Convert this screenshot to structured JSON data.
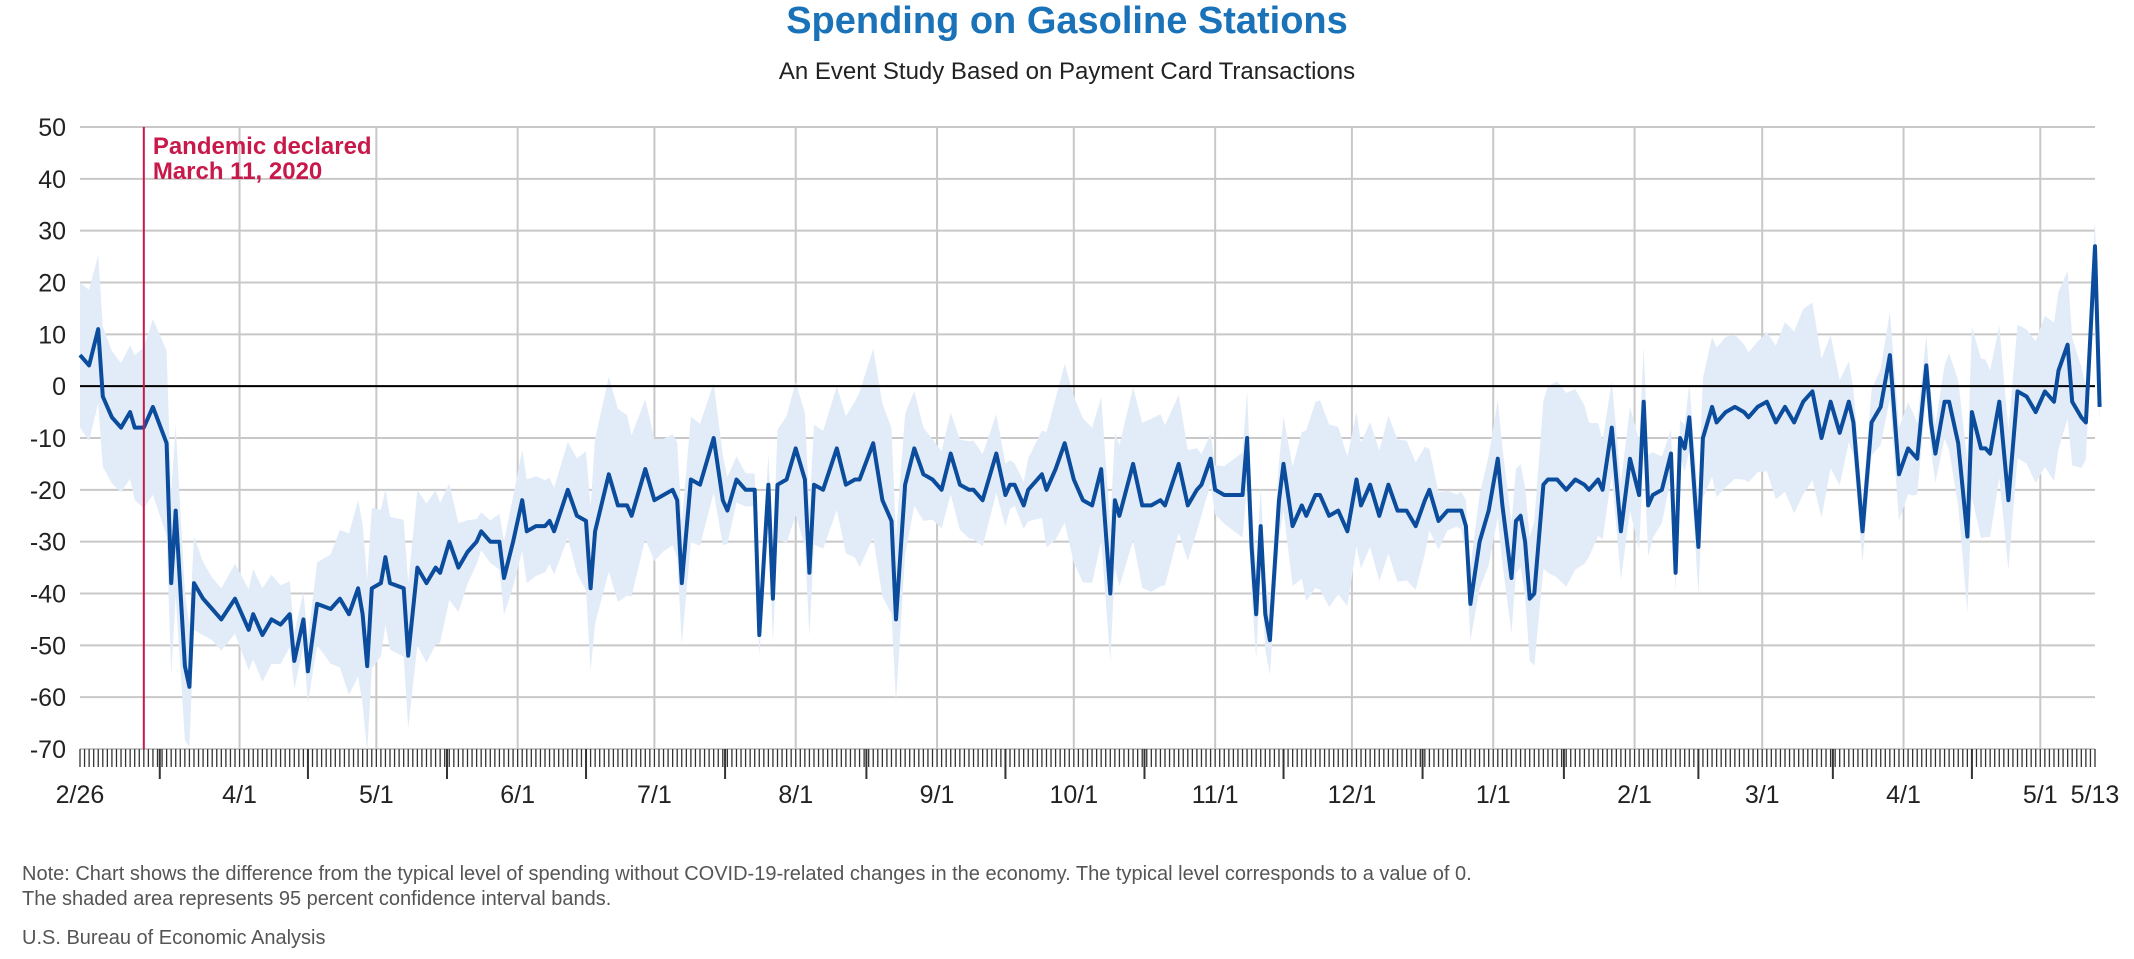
{
  "title": "Spending on Gasoline Stations",
  "subtitle": "An Event Study Based on Payment Card Transactions",
  "note_line1": "Note: Chart shows the difference from the typical level of spending without COVID-19-related changes in the economy. The typical level corresponds to a value of 0.",
  "note_line2": "The shaded area represents 95 percent confidence interval bands.",
  "source": "U.S. Bureau of Economic Analysis",
  "colors": {
    "title": "#1a73b9",
    "line": "#0b4c9c",
    "band": "#e2ecf8",
    "annotation": "#c8194b"
  },
  "chart_data": {
    "type": "line",
    "ylim": [
      -70,
      50
    ],
    "yticks": [
      50,
      40,
      30,
      20,
      10,
      0,
      -10,
      -20,
      -30,
      -40,
      -50,
      -60,
      -70
    ],
    "x_start": "2020-02-26",
    "x_end": "2021-05-13",
    "xticks": [
      {
        "date": "2020-02-26",
        "label": "2/26"
      },
      {
        "date": "2020-04-01",
        "label": "4/1"
      },
      {
        "date": "2020-05-01",
        "label": "5/1"
      },
      {
        "date": "2020-06-01",
        "label": "6/1"
      },
      {
        "date": "2020-07-01",
        "label": "7/1"
      },
      {
        "date": "2020-08-01",
        "label": "8/1"
      },
      {
        "date": "2020-09-01",
        "label": "9/1"
      },
      {
        "date": "2020-10-01",
        "label": "10/1"
      },
      {
        "date": "2020-11-01",
        "label": "11/1"
      },
      {
        "date": "2020-12-01",
        "label": "12/1"
      },
      {
        "date": "2021-01-01",
        "label": "1/1"
      },
      {
        "date": "2021-02-01",
        "label": "2/1"
      },
      {
        "date": "2021-03-01",
        "label": "3/1"
      },
      {
        "date": "2021-04-01",
        "label": "4/1"
      },
      {
        "date": "2021-05-01",
        "label": "5/1"
      },
      {
        "date": "2021-05-13",
        "label": "5/13"
      }
    ],
    "annotation": {
      "date": "2020-03-11",
      "line1": "Pandemic declared",
      "line2": "March 11, 2020"
    },
    "series": [
      {
        "points": [
          [
            "2020-02-26",
            6
          ],
          [
            "2020-02-28",
            4
          ],
          [
            "2020-03-01",
            11
          ],
          [
            "2020-03-02",
            -2
          ],
          [
            "2020-03-04",
            -6
          ],
          [
            "2020-03-06",
            -8
          ],
          [
            "2020-03-08",
            -5
          ],
          [
            "2020-03-09",
            -8
          ],
          [
            "2020-03-11",
            -8
          ],
          [
            "2020-03-13",
            -4
          ],
          [
            "2020-03-16",
            -11
          ],
          [
            "2020-03-17",
            -38
          ],
          [
            "2020-03-18",
            -24
          ],
          [
            "2020-03-20",
            -54
          ],
          [
            "2020-03-21",
            -58
          ],
          [
            "2020-03-22",
            -38
          ],
          [
            "2020-03-24",
            -41
          ],
          [
            "2020-03-26",
            -43
          ],
          [
            "2020-03-28",
            -45
          ],
          [
            "2020-03-31",
            -41
          ],
          [
            "2020-04-03",
            -47
          ],
          [
            "2020-04-04",
            -44
          ],
          [
            "2020-04-06",
            -48
          ],
          [
            "2020-04-08",
            -45
          ],
          [
            "2020-04-10",
            -46
          ],
          [
            "2020-04-12",
            -44
          ],
          [
            "2020-04-13",
            -53
          ],
          [
            "2020-04-15",
            -45
          ],
          [
            "2020-04-16",
            -55
          ],
          [
            "2020-04-18",
            -42
          ],
          [
            "2020-04-21",
            -43
          ],
          [
            "2020-04-23",
            -41
          ],
          [
            "2020-04-25",
            -44
          ],
          [
            "2020-04-27",
            -39
          ],
          [
            "2020-04-28",
            -44
          ],
          [
            "2020-04-29",
            -54
          ],
          [
            "2020-04-30",
            -39
          ],
          [
            "2020-05-02",
            -38
          ],
          [
            "2020-05-03",
            -33
          ],
          [
            "2020-05-04",
            -38
          ],
          [
            "2020-05-07",
            -39
          ],
          [
            "2020-05-08",
            -52
          ],
          [
            "2020-05-10",
            -35
          ],
          [
            "2020-05-12",
            -38
          ],
          [
            "2020-05-14",
            -35
          ],
          [
            "2020-05-15",
            -36
          ],
          [
            "2020-05-17",
            -30
          ],
          [
            "2020-05-19",
            -35
          ],
          [
            "2020-05-21",
            -32
          ],
          [
            "2020-05-23",
            -30
          ],
          [
            "2020-05-24",
            -28
          ],
          [
            "2020-05-26",
            -30
          ],
          [
            "2020-05-28",
            -30
          ],
          [
            "2020-05-29",
            -37
          ],
          [
            "2020-05-31",
            -30
          ],
          [
            "2020-06-02",
            -22
          ],
          [
            "2020-06-03",
            -28
          ],
          [
            "2020-06-05",
            -27
          ],
          [
            "2020-06-07",
            -27
          ],
          [
            "2020-06-08",
            -26
          ],
          [
            "2020-06-09",
            -28
          ],
          [
            "2020-06-12",
            -20
          ],
          [
            "2020-06-14",
            -25
          ],
          [
            "2020-06-16",
            -26
          ],
          [
            "2020-06-17",
            -39
          ],
          [
            "2020-06-18",
            -28
          ],
          [
            "2020-06-21",
            -17
          ],
          [
            "2020-06-23",
            -23
          ],
          [
            "2020-06-25",
            -23
          ],
          [
            "2020-06-26",
            -25
          ],
          [
            "2020-06-29",
            -16
          ],
          [
            "2020-07-01",
            -22
          ],
          [
            "2020-07-03",
            -21
          ],
          [
            "2020-07-05",
            -20
          ],
          [
            "2020-07-06",
            -22
          ],
          [
            "2020-07-07",
            -38
          ],
          [
            "2020-07-09",
            -18
          ],
          [
            "2020-07-11",
            -19
          ],
          [
            "2020-07-14",
            -10
          ],
          [
            "2020-07-16",
            -22
          ],
          [
            "2020-07-17",
            -24
          ],
          [
            "2020-07-19",
            -18
          ],
          [
            "2020-07-21",
            -20
          ],
          [
            "2020-07-23",
            -20
          ],
          [
            "2020-07-24",
            -48
          ],
          [
            "2020-07-26",
            -19
          ],
          [
            "2020-07-27",
            -41
          ],
          [
            "2020-07-28",
            -19
          ],
          [
            "2020-07-30",
            -18
          ],
          [
            "2020-08-01",
            -12
          ],
          [
            "2020-08-03",
            -18
          ],
          [
            "2020-08-04",
            -36
          ],
          [
            "2020-08-05",
            -19
          ],
          [
            "2020-08-07",
            -20
          ],
          [
            "2020-08-10",
            -12
          ],
          [
            "2020-08-12",
            -19
          ],
          [
            "2020-08-14",
            -18
          ],
          [
            "2020-08-15",
            -18
          ],
          [
            "2020-08-18",
            -11
          ],
          [
            "2020-08-20",
            -22
          ],
          [
            "2020-08-22",
            -26
          ],
          [
            "2020-08-23",
            -45
          ],
          [
            "2020-08-25",
            -19
          ],
          [
            "2020-08-27",
            -12
          ],
          [
            "2020-08-29",
            -17
          ],
          [
            "2020-08-31",
            -18
          ],
          [
            "2020-09-02",
            -20
          ],
          [
            "2020-09-04",
            -13
          ],
          [
            "2020-09-06",
            -19
          ],
          [
            "2020-09-08",
            -20
          ],
          [
            "2020-09-09",
            -20
          ],
          [
            "2020-09-11",
            -22
          ],
          [
            "2020-09-14",
            -13
          ],
          [
            "2020-09-16",
            -21
          ],
          [
            "2020-09-17",
            -19
          ],
          [
            "2020-09-18",
            -19
          ],
          [
            "2020-09-20",
            -23
          ],
          [
            "2020-09-21",
            -20
          ],
          [
            "2020-09-24",
            -17
          ],
          [
            "2020-09-25",
            -20
          ],
          [
            "2020-09-27",
            -16
          ],
          [
            "2020-09-29",
            -11
          ],
          [
            "2020-10-01",
            -18
          ],
          [
            "2020-10-03",
            -22
          ],
          [
            "2020-10-05",
            -23
          ],
          [
            "2020-10-07",
            -16
          ],
          [
            "2020-10-09",
            -40
          ],
          [
            "2020-10-10",
            -22
          ],
          [
            "2020-10-11",
            -25
          ],
          [
            "2020-10-14",
            -15
          ],
          [
            "2020-10-16",
            -23
          ],
          [
            "2020-10-18",
            -23
          ],
          [
            "2020-10-20",
            -22
          ],
          [
            "2020-10-21",
            -23
          ],
          [
            "2020-10-24",
            -15
          ],
          [
            "2020-10-26",
            -23
          ],
          [
            "2020-10-28",
            -20
          ],
          [
            "2020-10-29",
            -19
          ],
          [
            "2020-10-31",
            -14
          ],
          [
            "2020-11-01",
            -20
          ],
          [
            "2020-11-03",
            -21
          ],
          [
            "2020-11-05",
            -21
          ],
          [
            "2020-11-07",
            -21
          ],
          [
            "2020-11-08",
            -10
          ],
          [
            "2020-11-09",
            -31
          ],
          [
            "2020-11-10",
            -44
          ],
          [
            "2020-11-11",
            -27
          ],
          [
            "2020-11-12",
            -44
          ],
          [
            "2020-11-13",
            -49
          ],
          [
            "2020-11-15",
            -22
          ],
          [
            "2020-11-16",
            -15
          ],
          [
            "2020-11-18",
            -27
          ],
          [
            "2020-11-20",
            -23
          ],
          [
            "2020-11-21",
            -25
          ],
          [
            "2020-11-23",
            -21
          ],
          [
            "2020-11-24",
            -21
          ],
          [
            "2020-11-26",
            -25
          ],
          [
            "2020-11-28",
            -24
          ],
          [
            "2020-11-30",
            -28
          ],
          [
            "2020-12-02",
            -18
          ],
          [
            "2020-12-03",
            -23
          ],
          [
            "2020-12-05",
            -19
          ],
          [
            "2020-12-07",
            -25
          ],
          [
            "2020-12-09",
            -19
          ],
          [
            "2020-12-11",
            -24
          ],
          [
            "2020-12-13",
            -24
          ],
          [
            "2020-12-15",
            -27
          ],
          [
            "2020-12-17",
            -22
          ],
          [
            "2020-12-18",
            -20
          ],
          [
            "2020-12-20",
            -26
          ],
          [
            "2020-12-22",
            -24
          ],
          [
            "2020-12-24",
            -24
          ],
          [
            "2020-12-25",
            -24
          ],
          [
            "2020-12-26",
            -27
          ],
          [
            "2020-12-27",
            -42
          ],
          [
            "2020-12-29",
            -30
          ],
          [
            "2020-12-31",
            -24
          ],
          [
            "2021-01-02",
            -14
          ],
          [
            "2021-01-03",
            -23
          ],
          [
            "2021-01-05",
            -37
          ],
          [
            "2021-01-06",
            -26
          ],
          [
            "2021-01-07",
            -25
          ],
          [
            "2021-01-08",
            -30
          ],
          [
            "2021-01-09",
            -41
          ],
          [
            "2021-01-10",
            -40
          ],
          [
            "2021-01-12",
            -19
          ],
          [
            "2021-01-13",
            -18
          ],
          [
            "2021-01-15",
            -18
          ],
          [
            "2021-01-17",
            -20
          ],
          [
            "2021-01-19",
            -18
          ],
          [
            "2021-01-21",
            -19
          ],
          [
            "2021-01-22",
            -20
          ],
          [
            "2021-01-24",
            -18
          ],
          [
            "2021-01-25",
            -20
          ],
          [
            "2021-01-27",
            -8
          ],
          [
            "2021-01-29",
            -28
          ],
          [
            "2021-01-31",
            -14
          ],
          [
            "2021-02-02",
            -21
          ],
          [
            "2021-02-03",
            -3
          ],
          [
            "2021-02-04",
            -23
          ],
          [
            "2021-02-05",
            -21
          ],
          [
            "2021-02-07",
            -20
          ],
          [
            "2021-02-09",
            -13
          ],
          [
            "2021-02-10",
            -36
          ],
          [
            "2021-02-11",
            -10
          ],
          [
            "2021-02-12",
            -12
          ],
          [
            "2021-02-13",
            -6
          ],
          [
            "2021-02-15",
            -31
          ],
          [
            "2021-02-16",
            -10
          ],
          [
            "2021-02-18",
            -4
          ],
          [
            "2021-02-19",
            -7
          ],
          [
            "2021-02-21",
            -5
          ],
          [
            "2021-02-23",
            -4
          ],
          [
            "2021-02-25",
            -5
          ],
          [
            "2021-02-26",
            -6
          ],
          [
            "2021-02-28",
            -4
          ],
          [
            "2021-03-02",
            -3
          ],
          [
            "2021-03-04",
            -7
          ],
          [
            "2021-03-06",
            -4
          ],
          [
            "2021-03-08",
            -7
          ],
          [
            "2021-03-10",
            -3
          ],
          [
            "2021-03-12",
            -1
          ],
          [
            "2021-03-14",
            -10
          ],
          [
            "2021-03-16",
            -3
          ],
          [
            "2021-03-18",
            -9
          ],
          [
            "2021-03-20",
            -3
          ],
          [
            "2021-03-21",
            -7
          ],
          [
            "2021-03-23",
            -28
          ],
          [
            "2021-03-25",
            -7
          ],
          [
            "2021-03-27",
            -4
          ],
          [
            "2021-03-29",
            6
          ],
          [
            "2021-03-31",
            -17
          ],
          [
            "2021-04-02",
            -12
          ],
          [
            "2021-04-03",
            -13
          ],
          [
            "2021-04-04",
            -14
          ],
          [
            "2021-04-06",
            4
          ],
          [
            "2021-04-07",
            -7
          ],
          [
            "2021-04-08",
            -13
          ],
          [
            "2021-04-10",
            -3
          ],
          [
            "2021-04-11",
            -3
          ],
          [
            "2021-04-13",
            -11
          ],
          [
            "2021-04-15",
            -29
          ],
          [
            "2021-04-16",
            -5
          ],
          [
            "2021-04-18",
            -12
          ],
          [
            "2021-04-19",
            -12
          ],
          [
            "2021-04-20",
            -13
          ],
          [
            "2021-04-22",
            -3
          ],
          [
            "2021-04-24",
            -22
          ],
          [
            "2021-04-26",
            -1
          ],
          [
            "2021-04-28",
            -2
          ],
          [
            "2021-04-30",
            -5
          ],
          [
            "2021-05-02",
            -1
          ],
          [
            "2021-05-04",
            -3
          ],
          [
            "2021-05-05",
            3
          ],
          [
            "2021-05-07",
            8
          ],
          [
            "2021-05-08",
            -3
          ],
          [
            "2021-05-10",
            -6
          ],
          [
            "2021-05-11",
            -7
          ],
          [
            "2021-05-13",
            27
          ],
          [
            "2021-05-14",
            -4
          ]
        ]
      }
    ]
  }
}
